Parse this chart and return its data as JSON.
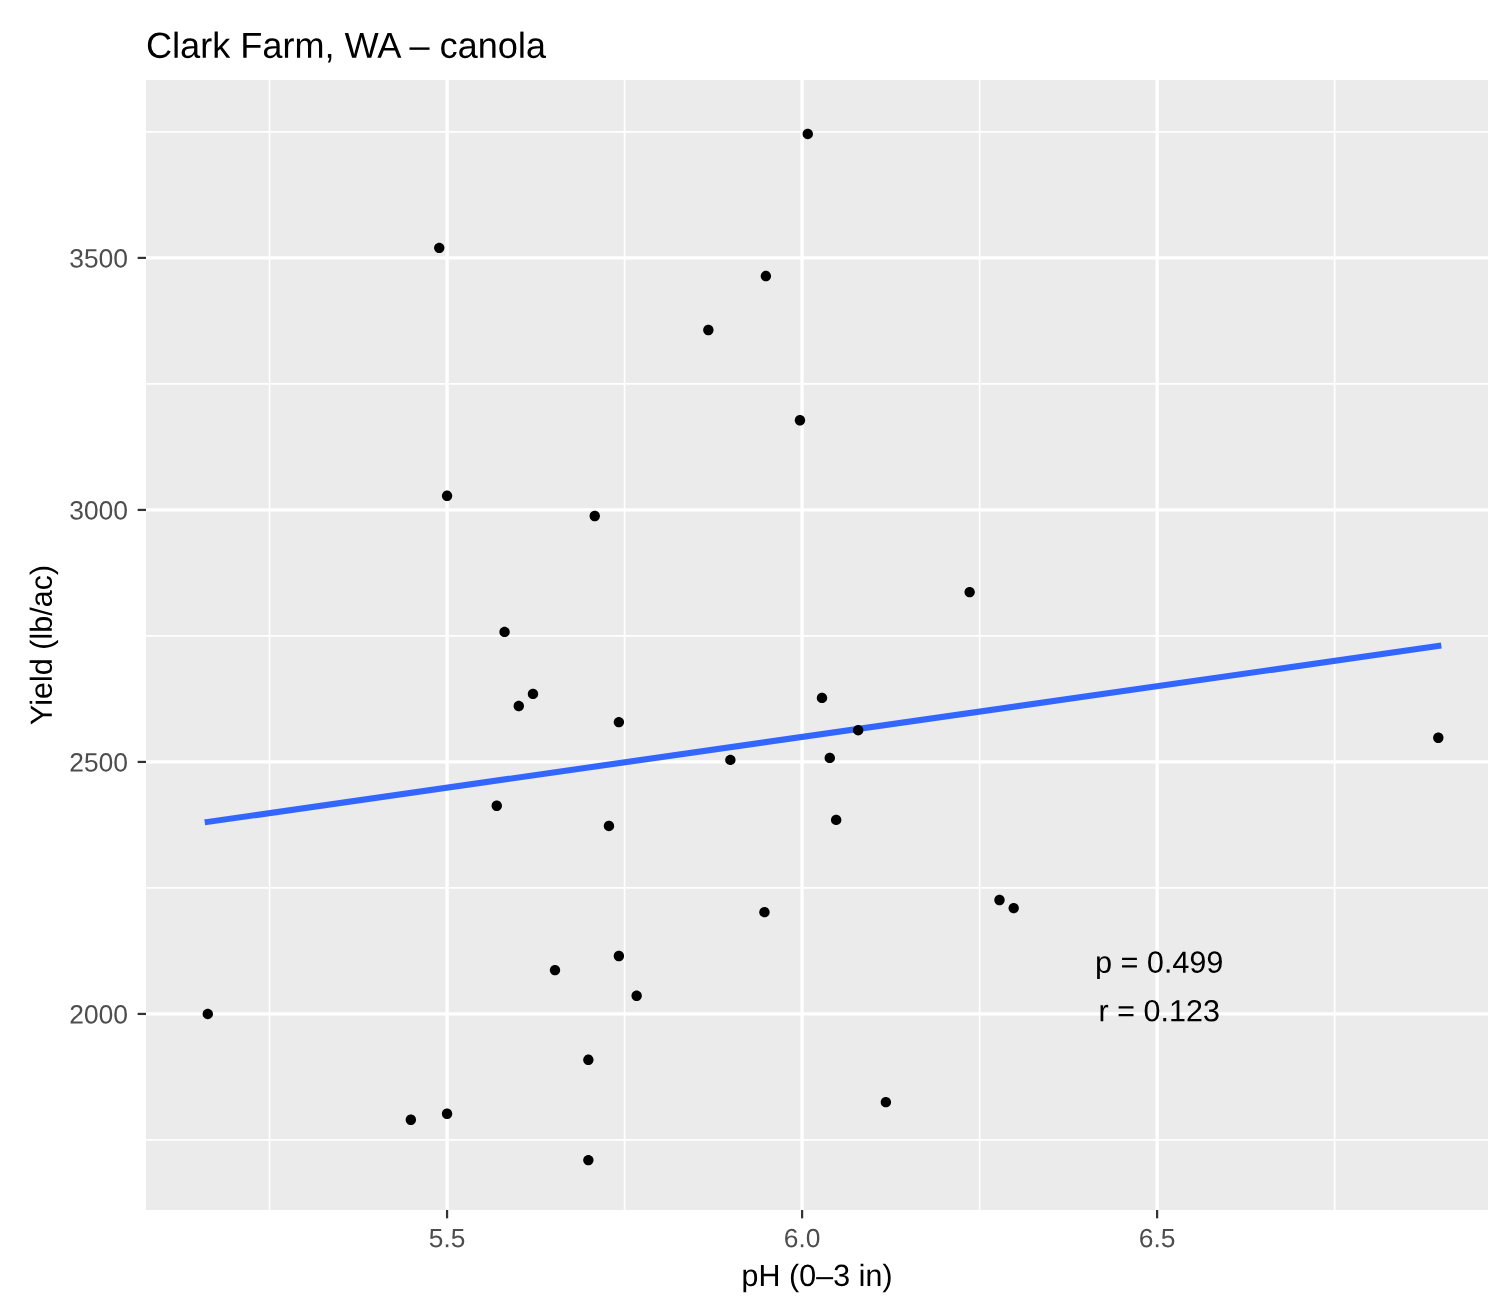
{
  "chart_data": {
    "type": "scatter",
    "title": "Clark Farm, WA – canola",
    "xlabel": "pH (0–3 in)",
    "ylabel": "Yield (lb/ac)",
    "xlim": [
      5.076,
      6.966
    ],
    "ylim": [
      1611,
      3853
    ],
    "xticks": [
      5.5,
      {
        "value": 6.0,
        "label": "6.0"
      },
      6.5
    ],
    "yticks": [
      2000,
      2500,
      3000,
      3500
    ],
    "grid": true,
    "annotations": [
      "p = 0.499",
      "r = 0.123"
    ],
    "series": [
      {
        "color": "#000000",
        "marker": "circle",
        "x": [
          5.163,
          5.449,
          5.5,
          5.489,
          5.5,
          5.581,
          5.601,
          5.621,
          5.57,
          5.708,
          5.742,
          5.728,
          5.742,
          5.652,
          5.767,
          5.699,
          5.699,
          5.868,
          5.899,
          5.949,
          5.947,
          6.008,
          5.997,
          6.028,
          6.039,
          6.079,
          6.048,
          6.118,
          6.236,
          6.278,
          6.298,
          6.896
        ],
        "values": [
          2000,
          1790,
          1802,
          3520,
          3028,
          2758,
          2611,
          2635,
          2413,
          2988,
          2579,
          2373,
          2115,
          2087,
          2036,
          1909,
          1710,
          3357,
          2504,
          3464,
          2202,
          3746,
          3178,
          2627,
          2508,
          2563,
          2385,
          1825,
          2837,
          2226,
          2210,
          2548
        ]
      },
      {
        "type": "line",
        "color": "#3366ff",
        "x": [
          5.163,
          6.896
        ],
        "values": [
          2381,
          2730
        ]
      }
    ]
  }
}
